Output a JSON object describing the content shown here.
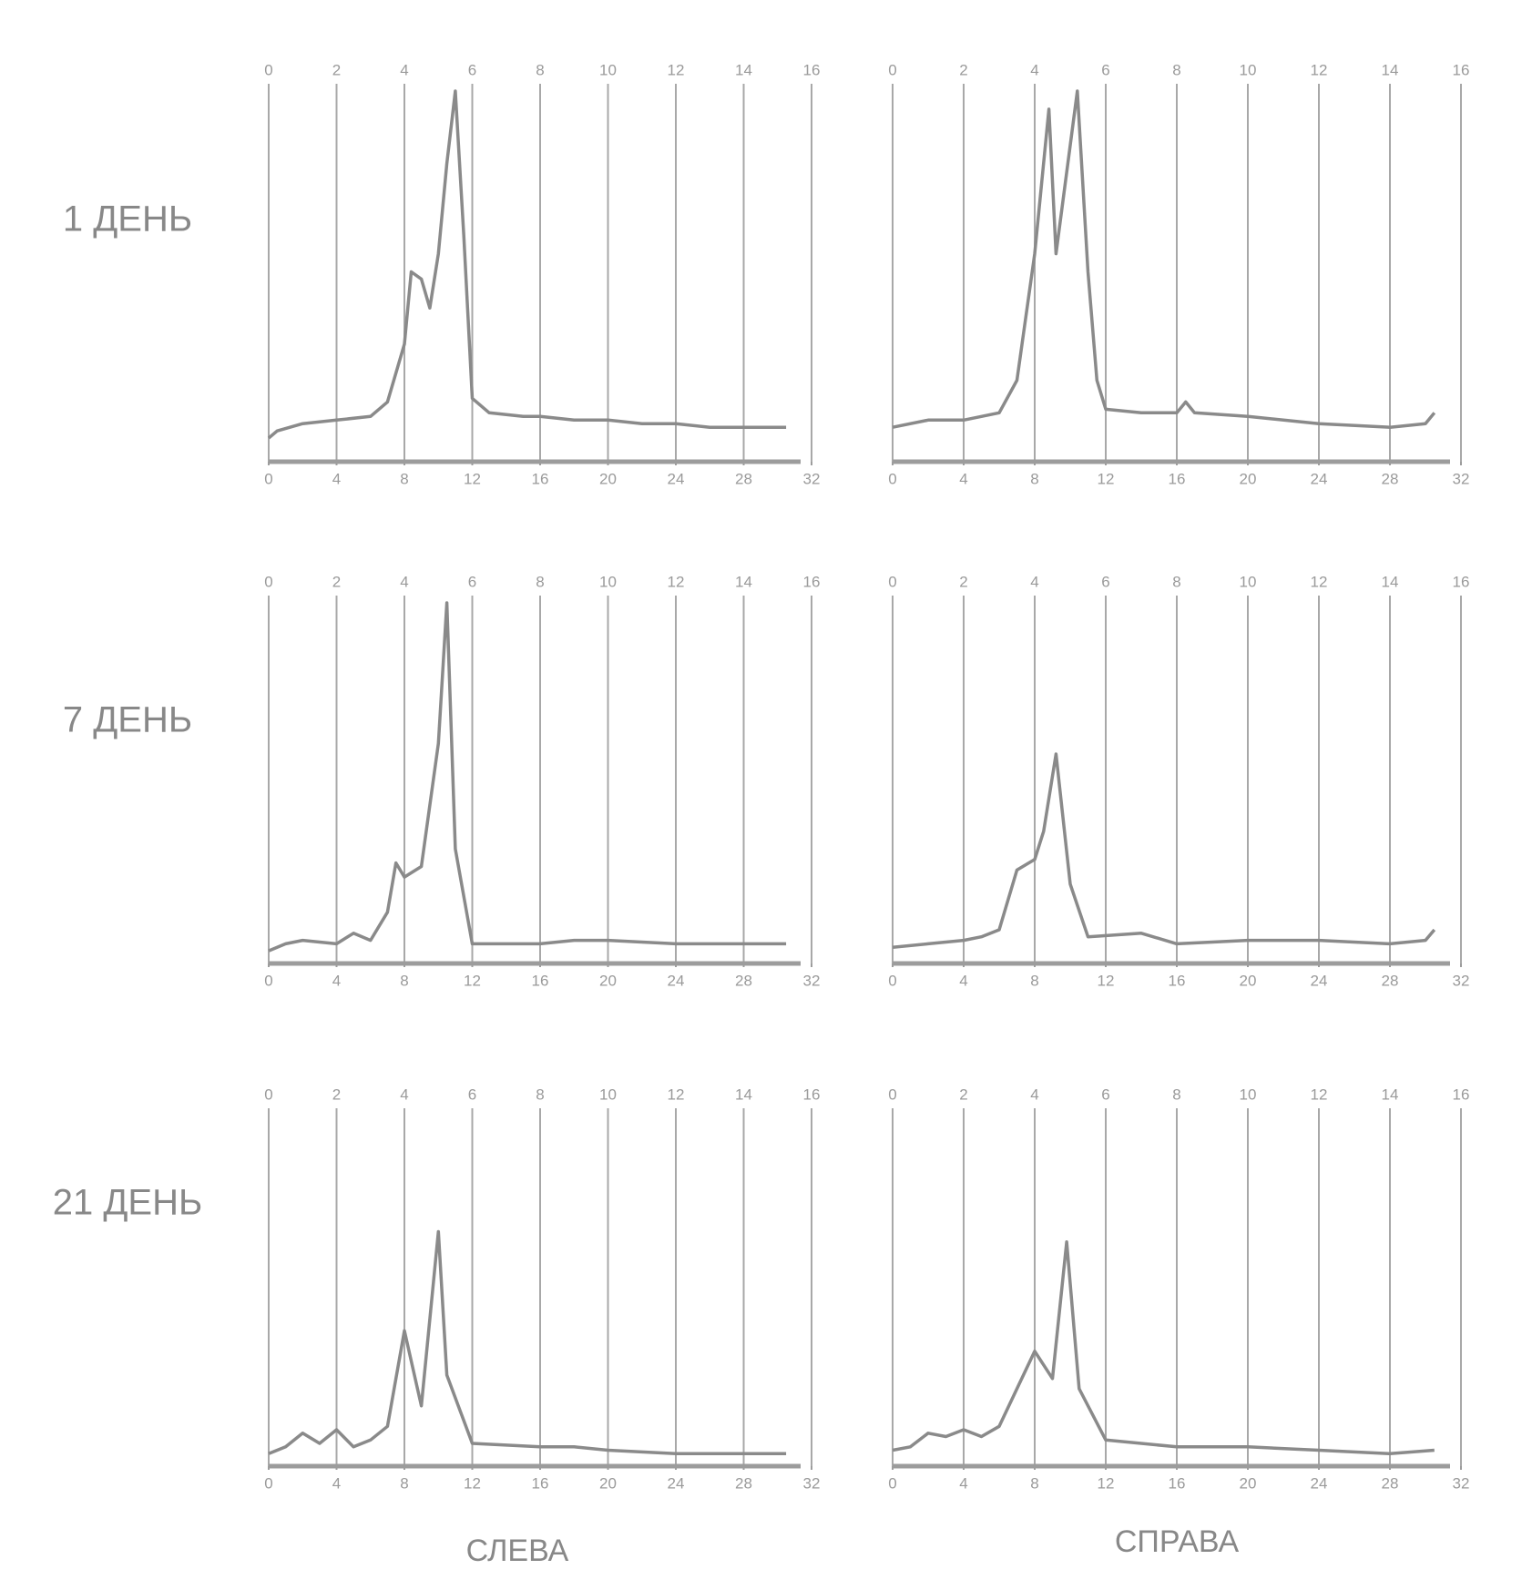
{
  "row_labels": [
    "1 ДЕНЬ",
    "7 ДЕНЬ",
    "21 ДЕНЬ"
  ],
  "column_labels": [
    "СЛЕВА",
    "СПРАВА"
  ],
  "chart_data": [
    {
      "type": "line",
      "color": "#8a8a8a",
      "xlim": [
        0,
        32
      ],
      "xticks": [
        0,
        4,
        8,
        12,
        16,
        20,
        24,
        28,
        32
      ],
      "x2lim": [
        0,
        16
      ],
      "x2ticks": [
        0,
        2,
        4,
        6,
        8,
        10,
        12,
        14,
        16
      ],
      "ylim": [
        0,
        100
      ],
      "grid": true,
      "x": [
        0,
        0.5,
        2,
        4,
        6,
        7,
        8,
        8.4,
        9,
        9.5,
        10,
        10.5,
        11,
        11.5,
        12,
        13,
        15,
        16,
        18,
        20,
        22,
        24,
        26,
        28,
        30.5
      ],
      "values": [
        4,
        6,
        8,
        9,
        10,
        14,
        30,
        50,
        48,
        40,
        55,
        80,
        100,
        60,
        15,
        11,
        10,
        10,
        9,
        9,
        8,
        8,
        7,
        7,
        7
      ]
    },
    {
      "type": "line",
      "color": "#8a8a8a",
      "xlim": [
        0,
        32
      ],
      "xticks": [
        0,
        4,
        8,
        12,
        16,
        20,
        24,
        28,
        32
      ],
      "x2lim": [
        0,
        16
      ],
      "x2ticks": [
        0,
        2,
        4,
        6,
        8,
        10,
        12,
        14,
        16
      ],
      "ylim": [
        0,
        100
      ],
      "grid": true,
      "x": [
        0,
        2,
        4,
        6,
        7,
        8,
        8.8,
        9.2,
        9.6,
        10.4,
        11,
        11.5,
        12,
        14,
        16,
        16.5,
        17,
        20,
        24,
        28,
        30,
        30.5
      ],
      "values": [
        7,
        9,
        9,
        11,
        20,
        55,
        95,
        55,
        70,
        100,
        50,
        20,
        12,
        11,
        11,
        14,
        11,
        10,
        8,
        7,
        8,
        11
      ]
    },
    {
      "type": "line",
      "color": "#8a8a8a",
      "xlim": [
        0,
        32
      ],
      "xticks": [
        0,
        4,
        8,
        12,
        16,
        20,
        24,
        28,
        32
      ],
      "x2lim": [
        0,
        16
      ],
      "x2ticks": [
        0,
        2,
        4,
        6,
        8,
        10,
        12,
        14,
        16
      ],
      "ylim": [
        0,
        100
      ],
      "grid": true,
      "x": [
        0,
        1,
        2,
        4,
        5,
        6,
        7,
        7.5,
        8,
        9,
        10,
        10.5,
        11,
        12,
        16,
        18,
        20,
        24,
        28,
        30.5
      ],
      "values": [
        1,
        3,
        4,
        3,
        6,
        4,
        12,
        26,
        22,
        25,
        60,
        100,
        30,
        3,
        3,
        4,
        4,
        3,
        3,
        3
      ]
    },
    {
      "type": "line",
      "color": "#8a8a8a",
      "xlim": [
        0,
        32
      ],
      "xticks": [
        0,
        4,
        8,
        12,
        16,
        20,
        24,
        28,
        32
      ],
      "x2lim": [
        0,
        16
      ],
      "x2ticks": [
        0,
        2,
        4,
        6,
        8,
        10,
        12,
        14,
        16
      ],
      "ylim": [
        0,
        100
      ],
      "grid": true,
      "x": [
        0,
        2,
        4,
        5,
        6,
        7,
        8,
        8.5,
        9.2,
        10,
        11,
        14,
        16,
        20,
        24,
        28,
        30,
        30.5
      ],
      "values": [
        2,
        3,
        4,
        5,
        7,
        24,
        27,
        35,
        57,
        20,
        5,
        6,
        3,
        4,
        4,
        3,
        4,
        7
      ]
    },
    {
      "type": "line",
      "color": "#8a8a8a",
      "xlim": [
        0,
        32
      ],
      "xticks": [
        0,
        4,
        8,
        12,
        16,
        20,
        24,
        28,
        32
      ],
      "x2lim": [
        0,
        16
      ],
      "x2ticks": [
        0,
        2,
        4,
        6,
        8,
        10,
        12,
        14,
        16
      ],
      "ylim": [
        0,
        100
      ],
      "grid": true,
      "x": [
        0,
        1,
        2,
        3,
        4,
        5,
        6,
        7,
        8,
        9,
        10,
        10.5,
        12,
        16,
        18,
        20,
        24,
        28,
        30.5
      ],
      "values": [
        1,
        3,
        7,
        4,
        8,
        3,
        5,
        9,
        37,
        15,
        66,
        24,
        4,
        3,
        3,
        2,
        1,
        1,
        1
      ]
    },
    {
      "type": "line",
      "color": "#8a8a8a",
      "xlim": [
        0,
        32
      ],
      "xticks": [
        0,
        4,
        8,
        12,
        16,
        20,
        24,
        28,
        32
      ],
      "x2lim": [
        0,
        16
      ],
      "x2ticks": [
        0,
        2,
        4,
        6,
        8,
        10,
        12,
        14,
        16
      ],
      "ylim": [
        0,
        100
      ],
      "grid": true,
      "x": [
        0,
        1,
        2,
        3,
        4,
        5,
        6,
        7,
        8,
        9,
        9.8,
        10.5,
        12,
        16,
        20,
        24,
        28,
        30.5
      ],
      "values": [
        2,
        3,
        7,
        6,
        8,
        6,
        9,
        20,
        31,
        23,
        63,
        20,
        5,
        3,
        3,
        2,
        1,
        2
      ]
    }
  ]
}
